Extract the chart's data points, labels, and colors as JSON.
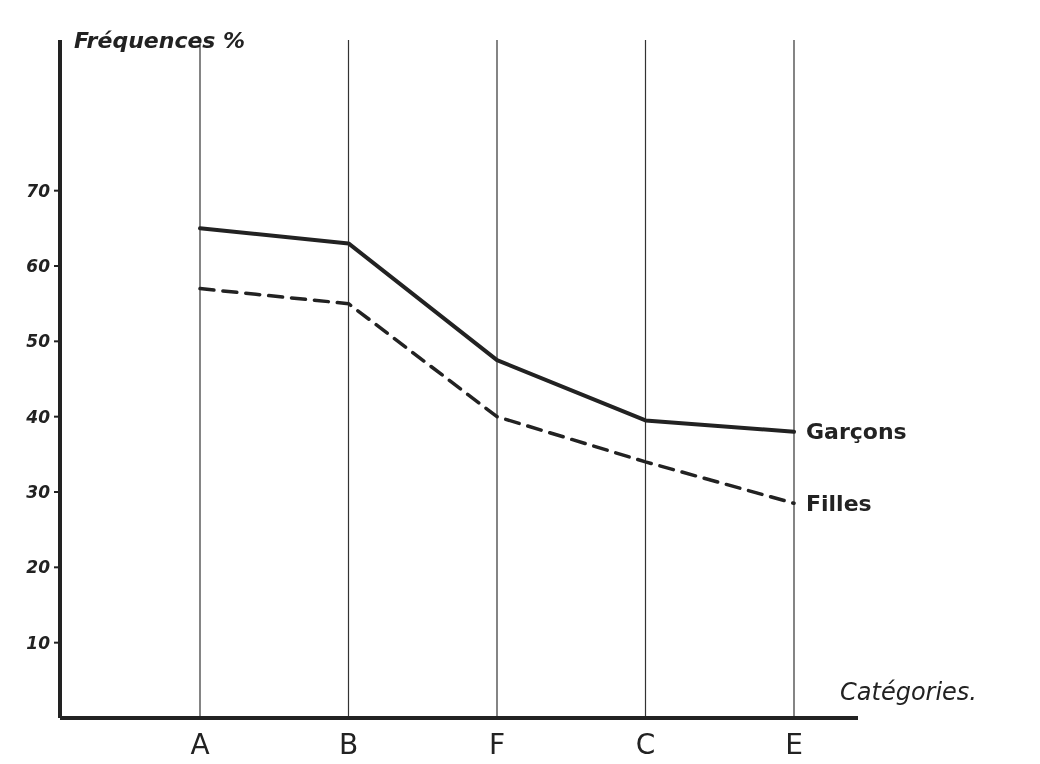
{
  "chart_data": {
    "type": "line",
    "ylabel": "Fréquences %",
    "xlabel": "Catégories.",
    "categories": [
      "A",
      "B",
      "F",
      "C",
      "E"
    ],
    "series": [
      {
        "name": "Garçons",
        "color": "#222222",
        "line_style": "solid",
        "values": [
          65,
          63,
          47.5,
          39.5,
          38
        ]
      },
      {
        "name": "Filles",
        "color": "#222222",
        "line_style": "dashed",
        "values": [
          57,
          55,
          40,
          34,
          28.5
        ]
      }
    ],
    "ylim": [
      0,
      90
    ],
    "yticks": [
      10,
      20,
      30,
      40,
      50,
      60,
      70
    ],
    "grid": "x",
    "legend": false,
    "marker": "none"
  }
}
